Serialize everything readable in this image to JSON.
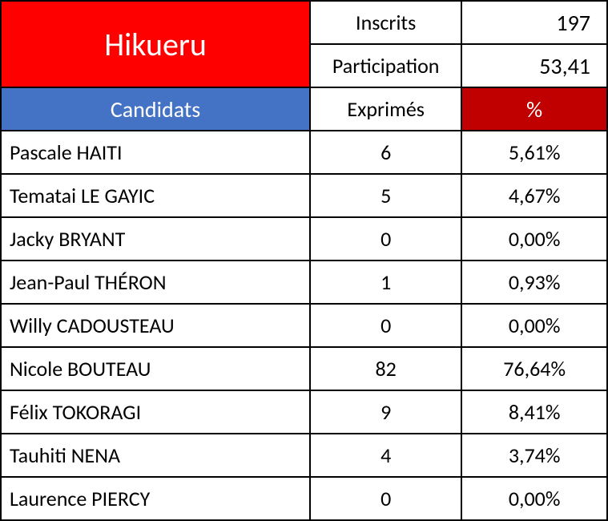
{
  "title": "Hikueru",
  "stats": {
    "inscrits_label": "Inscrits",
    "inscrits_value": "197",
    "participation_label": "Participation",
    "participation_value": "53,41"
  },
  "headers": {
    "candidats": "Candidats",
    "exprimes": "Exprimés",
    "pct": "%"
  },
  "candidates": [
    {
      "name": "Pascale HAITI",
      "votes": "6",
      "pct": "5,61%"
    },
    {
      "name": "Tematai LE GAYIC",
      "votes": "5",
      "pct": "4,67%"
    },
    {
      "name": "Jacky BRYANT",
      "votes": "0",
      "pct": "0,00%"
    },
    {
      "name": "Jean-Paul THÉRON",
      "votes": "1",
      "pct": "0,93%"
    },
    {
      "name": "Willy CADOUSTEAU",
      "votes": "0",
      "pct": "0,00%"
    },
    {
      "name": "Nicole BOUTEAU",
      "votes": "82",
      "pct": "76,64%"
    },
    {
      "name": "Félix TOKORAGI",
      "votes": "9",
      "pct": "8,41%"
    },
    {
      "name": "Tauhiti NENA",
      "votes": "4",
      "pct": "3,74%"
    },
    {
      "name": "Laurence PIERCY",
      "votes": "0",
      "pct": "0,00%"
    }
  ],
  "styling": {
    "title_bg": "#ff0000",
    "title_color": "#ffffff",
    "candidats_bg": "#4472c4",
    "candidats_color": "#ffffff",
    "pct_header_bg": "#c00000",
    "pct_header_color": "#ffffff",
    "border_color": "#000000",
    "cell_bg": "#ffffff",
    "cell_color": "#000000",
    "title_fontsize": 40,
    "body_fontsize": 26,
    "col_widths": [
      "51%",
      "25%",
      "24%"
    ]
  }
}
